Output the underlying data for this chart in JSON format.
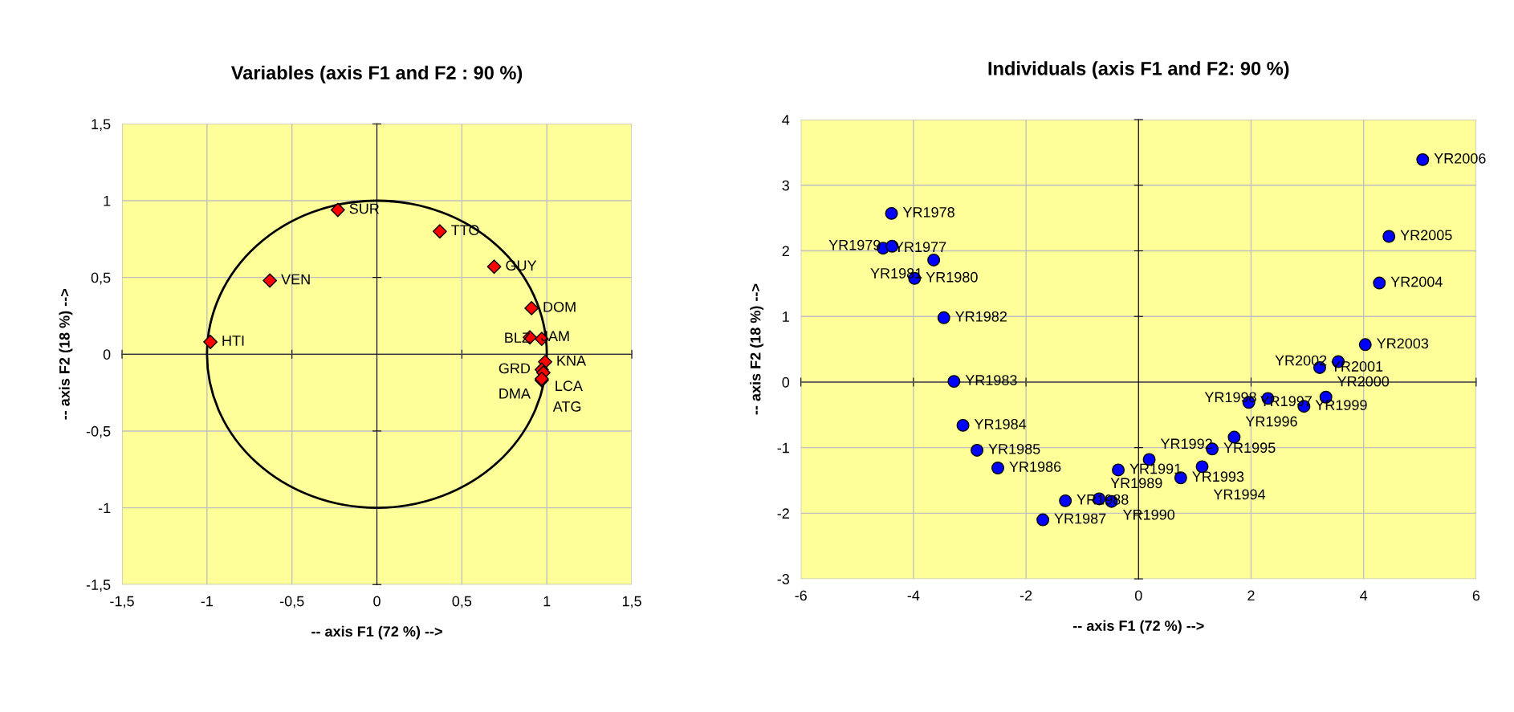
{
  "chart_data": [
    {
      "type": "scatter",
      "title": "Variables (axis F1 and F2 : 90 %)",
      "xlabel": "-- axis F1 (72 %) -->",
      "ylabel": "-- axis F2 (18 %) -->",
      "x": [
        -0.23,
        0.37,
        0.69,
        -0.63,
        -0.98,
        0.91,
        0.9,
        0.97,
        0.99,
        0.97,
        0.98,
        0.97,
        0.97
      ],
      "series": [
        {
          "color": "#ff0000",
          "marker": "diamond",
          "values": [
            0.94,
            0.8,
            0.57,
            0.48,
            0.08,
            0.3,
            0.11,
            0.1,
            -0.05,
            -0.1,
            -0.12,
            -0.17,
            -0.16
          ]
        }
      ],
      "annotations": [
        {
          "text": "SUR",
          "x": -0.23,
          "y": 0.94
        },
        {
          "text": "TTO",
          "x": 0.37,
          "y": 0.8
        },
        {
          "text": "GUY",
          "x": 0.69,
          "y": 0.57
        },
        {
          "text": "VEN",
          "x": -0.63,
          "y": 0.48
        },
        {
          "text": "HTI",
          "x": -0.98,
          "y": 0.08
        },
        {
          "text": "DOM",
          "x": 0.91,
          "y": 0.3
        },
        {
          "text": "JAM",
          "x": 0.9,
          "y": 0.11
        },
        {
          "text": "BLZ",
          "x": 0.97,
          "y": 0.1
        },
        {
          "text": "KNA",
          "x": 0.99,
          "y": -0.05
        },
        {
          "text": "GRD",
          "x": 0.97,
          "y": -0.1
        },
        {
          "text": "LCA",
          "x": 0.98,
          "y": -0.12
        },
        {
          "text": "DMA",
          "x": 0.97,
          "y": -0.17
        },
        {
          "text": "ATG",
          "x": 0.97,
          "y": -0.16
        }
      ],
      "xlim": [
        -1.5,
        1.5
      ],
      "ylim": [
        -1.5,
        1.5
      ],
      "xticks": [
        {
          "value": -1.5,
          "label": "-1,5"
        },
        -1,
        {
          "value": -0.5,
          "label": "-0,5"
        },
        0,
        {
          "value": 0.5,
          "label": "0,5"
        },
        1,
        {
          "value": 1.5,
          "label": "1,5"
        }
      ],
      "yticks": [
        {
          "value": -1.5,
          "label": "-1,5"
        },
        -1,
        {
          "value": -0.5,
          "label": "-0,5"
        },
        0,
        {
          "value": 0.5,
          "label": "0,5"
        },
        1,
        {
          "value": 1.5,
          "label": "1,5"
        }
      ],
      "grid": true
    },
    {
      "type": "scatter",
      "title": "Individuals (axis F1 and F2: 90 %)",
      "xlabel": "-- axis F1 (72 %) -->",
      "ylabel": "-- axis F2 (18 %) -->",
      "x": [
        -4.54,
        -4.39,
        -4.38,
        -3.98,
        -3.64,
        -3.46,
        -3.28,
        -3.12,
        -2.87,
        -2.5,
        -1.7,
        -1.3,
        -0.7,
        -0.48,
        -0.36,
        0.19,
        0.75,
        1.13,
        1.31,
        1.7,
        1.96,
        2.3,
        2.94,
        3.33,
        3.22,
        3.55,
        4.03,
        4.28,
        4.45,
        5.05
      ],
      "series": [
        {
          "color": "#0000ff",
          "marker": "circle",
          "values": [
            2.04,
            2.57,
            2.07,
            1.58,
            1.86,
            0.98,
            0.01,
            -0.66,
            -1.04,
            -1.31,
            -2.1,
            -1.81,
            -1.78,
            -1.82,
            -1.34,
            -1.18,
            -1.46,
            -1.29,
            -1.02,
            -0.84,
            -0.31,
            -0.25,
            -0.37,
            -0.23,
            0.22,
            0.31,
            0.57,
            1.51,
            2.22,
            3.39
          ]
        }
      ],
      "annotations": [
        {
          "text": "YR1977",
          "x": -4.54,
          "y": 2.04
        },
        {
          "text": "YR1978",
          "x": -4.39,
          "y": 2.57
        },
        {
          "text": "YR1979",
          "x": -4.38,
          "y": 2.07
        },
        {
          "text": "YR1980",
          "x": -3.98,
          "y": 1.58
        },
        {
          "text": "YR1981",
          "x": -3.64,
          "y": 1.86
        },
        {
          "text": "YR1982",
          "x": -3.46,
          "y": 0.98
        },
        {
          "text": "YR1983",
          "x": -3.28,
          "y": 0.01
        },
        {
          "text": "YR1984",
          "x": -3.12,
          "y": -0.66
        },
        {
          "text": "YR1985",
          "x": -2.87,
          "y": -1.04
        },
        {
          "text": "YR1986",
          "x": -2.5,
          "y": -1.31
        },
        {
          "text": "YR1987",
          "x": -1.7,
          "y": -2.1
        },
        {
          "text": "YR1988",
          "x": -1.3,
          "y": -1.81
        },
        {
          "text": "YR1989",
          "x": -0.7,
          "y": -1.78
        },
        {
          "text": "YR1990",
          "x": -0.48,
          "y": -1.82
        },
        {
          "text": "YR1991",
          "x": -0.36,
          "y": -1.34
        },
        {
          "text": "YR1992",
          "x": 0.19,
          "y": -1.18
        },
        {
          "text": "YR1993",
          "x": 0.75,
          "y": -1.46
        },
        {
          "text": "YR1994",
          "x": 1.13,
          "y": -1.29
        },
        {
          "text": "YR1995",
          "x": 1.31,
          "y": -1.02
        },
        {
          "text": "YR1996",
          "x": 1.7,
          "y": -0.84
        },
        {
          "text": "YR1997",
          "x": 1.96,
          "y": -0.31
        },
        {
          "text": "YR1998",
          "x": 2.3,
          "y": -0.25
        },
        {
          "text": "YR1999",
          "x": 2.94,
          "y": -0.37
        },
        {
          "text": "YR2000",
          "x": 3.33,
          "y": -0.23
        },
        {
          "text": "YR2001",
          "x": 3.22,
          "y": 0.22
        },
        {
          "text": "YR2002",
          "x": 3.55,
          "y": 0.31
        },
        {
          "text": "YR2003",
          "x": 4.03,
          "y": 0.57
        },
        {
          "text": "YR2004",
          "x": 4.28,
          "y": 1.51
        },
        {
          "text": "YR2005",
          "x": 4.45,
          "y": 2.22
        },
        {
          "text": "YR2006",
          "x": 5.05,
          "y": 3.39
        }
      ],
      "xlim": [
        -6,
        6
      ],
      "ylim": [
        -3,
        4
      ],
      "xticks": [
        -6,
        -4,
        -2,
        0,
        2,
        4,
        6
      ],
      "yticks": [
        -3,
        -2,
        -1,
        0,
        1,
        2,
        3,
        4
      ],
      "grid": true
    }
  ]
}
